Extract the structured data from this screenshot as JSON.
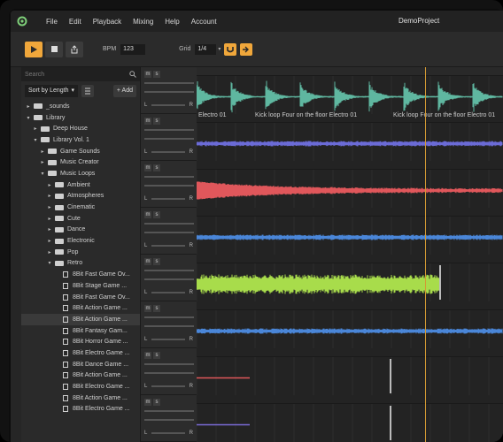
{
  "menubar": {
    "items": [
      "File",
      "Edit",
      "Playback",
      "Mixing",
      "Help",
      "Account"
    ],
    "project_title": "DemoProject"
  },
  "toolbar": {
    "bpm_label": "BPM",
    "bpm_value": "123",
    "grid_label": "Grid",
    "grid_value": "1/4",
    "accent_color": "#f0a73b"
  },
  "sidebar": {
    "search_placeholder": "Search",
    "sort_label": "Sort by Length",
    "add_label": "+ Add",
    "tree": [
      {
        "label": "_sounds",
        "indent": 0,
        "type": "folder",
        "expanded": false
      },
      {
        "label": "Library",
        "indent": 0,
        "type": "folder",
        "expanded": true
      },
      {
        "label": "Deep House",
        "indent": 1,
        "type": "folder",
        "expanded": false
      },
      {
        "label": "Library Vol. 1",
        "indent": 1,
        "type": "folder",
        "expanded": true
      },
      {
        "label": "Game Sounds",
        "indent": 2,
        "type": "folder",
        "expanded": false
      },
      {
        "label": "Music Creator",
        "indent": 2,
        "type": "folder",
        "expanded": false
      },
      {
        "label": "Music Loops",
        "indent": 2,
        "type": "folder",
        "expanded": true
      },
      {
        "label": "Ambient",
        "indent": 3,
        "type": "folder",
        "expanded": false
      },
      {
        "label": "Atmospheres",
        "indent": 3,
        "type": "folder",
        "expanded": false
      },
      {
        "label": "Cinematic",
        "indent": 3,
        "type": "folder",
        "expanded": false
      },
      {
        "label": "Cute",
        "indent": 3,
        "type": "folder",
        "expanded": false
      },
      {
        "label": "Dance",
        "indent": 3,
        "type": "folder",
        "expanded": false
      },
      {
        "label": "Electronic",
        "indent": 3,
        "type": "folder",
        "expanded": false
      },
      {
        "label": "Pop",
        "indent": 3,
        "type": "folder",
        "expanded": false
      },
      {
        "label": "Retro",
        "indent": 3,
        "type": "folder",
        "expanded": true
      },
      {
        "label": "8Bit Fast Game Ov...",
        "indent": 4,
        "type": "file"
      },
      {
        "label": "8Bit Stage Game ...",
        "indent": 4,
        "type": "file"
      },
      {
        "label": "8Bit Fast Game Ov...",
        "indent": 4,
        "type": "file"
      },
      {
        "label": "8Bit Action Game ...",
        "indent": 4,
        "type": "file"
      },
      {
        "label": "8Bit Action Game ...",
        "indent": 4,
        "type": "file",
        "selected": true
      },
      {
        "label": "8Bit Fantasy Gam...",
        "indent": 4,
        "type": "file"
      },
      {
        "label": "8Bit Horror Game ...",
        "indent": 4,
        "type": "file"
      },
      {
        "label": "8Bit Electro Game ...",
        "indent": 4,
        "type": "file"
      },
      {
        "label": "8Bit Dance Game ...",
        "indent": 4,
        "type": "file"
      },
      {
        "label": "8Bit Action Game ...",
        "indent": 4,
        "type": "file"
      },
      {
        "label": "8Bit Electro Game ...",
        "indent": 4,
        "type": "file"
      },
      {
        "label": "8Bit Action Game ...",
        "indent": 4,
        "type": "file"
      },
      {
        "label": "8Bit Electro Game ...",
        "indent": 4,
        "type": "file"
      }
    ]
  },
  "tracks": {
    "mute_label": "m",
    "solo_label": "s",
    "left_label": "L",
    "right_label": "R",
    "items": [
      {
        "color": "#5fb7a0",
        "clips": [
          "Electro 01",
          "Kick loop Four on the floor Electro 01",
          "Kick loop Four on the floor Electro 01"
        ]
      },
      {
        "color": "#6b6bd6"
      },
      {
        "color": "#e0575b"
      },
      {
        "color": "#4a86d8"
      },
      {
        "color": "#a8dc4b"
      },
      {
        "color": "#4a86d8"
      },
      {
        "color": "#e0575b"
      },
      {
        "color": "#7b6bd6"
      }
    ]
  }
}
